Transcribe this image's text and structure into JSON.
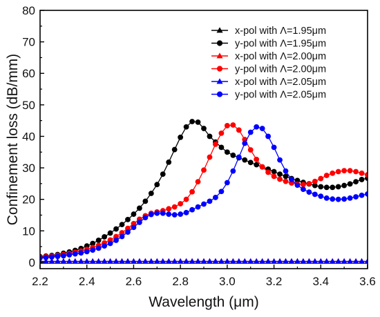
{
  "chart_data": {
    "type": "line",
    "xlabel": "Wavelength (μm)",
    "ylabel": "Confinement loss (dB/mm)",
    "xlim": [
      2.2,
      3.6
    ],
    "ylim": [
      -2,
      80
    ],
    "xticks": [
      "2.2",
      "2.4",
      "2.6",
      "2.8",
      "3.0",
      "3.2",
      "3.4",
      "3.6"
    ],
    "yticks": [
      "0",
      "10",
      "20",
      "30",
      "40",
      "50",
      "60",
      "70",
      "80"
    ],
    "grid": false,
    "legend_position": "top-right",
    "x": [
      2.2,
      2.225,
      2.25,
      2.275,
      2.3,
      2.325,
      2.35,
      2.375,
      2.4,
      2.425,
      2.45,
      2.475,
      2.5,
      2.525,
      2.55,
      2.575,
      2.6,
      2.625,
      2.65,
      2.675,
      2.7,
      2.725,
      2.75,
      2.775,
      2.8,
      2.825,
      2.85,
      2.875,
      2.9,
      2.925,
      2.95,
      2.975,
      3.0,
      3.025,
      3.05,
      3.075,
      3.1,
      3.125,
      3.15,
      3.175,
      3.2,
      3.225,
      3.25,
      3.275,
      3.3,
      3.325,
      3.35,
      3.375,
      3.4,
      3.425,
      3.45,
      3.475,
      3.5,
      3.525,
      3.55,
      3.575,
      3.6
    ],
    "series": [
      {
        "name": "x-pol with Λ=1.95μm",
        "marker": "triangle",
        "color": "#000000",
        "values": [
          0.3,
          0.3,
          0.3,
          0.3,
          0.3,
          0.3,
          0.3,
          0.3,
          0.3,
          0.3,
          0.3,
          0.3,
          0.3,
          0.3,
          0.3,
          0.3,
          0.3,
          0.3,
          0.3,
          0.3,
          0.3,
          0.3,
          0.3,
          0.3,
          0.3,
          0.3,
          0.3,
          0.3,
          0.3,
          0.3,
          0.3,
          0.3,
          0.3,
          0.3,
          0.3,
          0.3,
          0.3,
          0.3,
          0.3,
          0.3,
          0.3,
          0.3,
          0.3,
          0.3,
          0.3,
          0.3,
          0.3,
          0.3,
          0.3,
          0.3,
          0.3,
          0.3,
          0.3,
          0.3,
          0.3,
          0.3,
          0.3
        ]
      },
      {
        "name": "y-pol with Λ=1.95μm",
        "marker": "circle",
        "color": "#000000",
        "values": [
          1.8,
          2.0,
          2.2,
          2.5,
          2.9,
          3.3,
          3.8,
          4.4,
          5.2,
          6.0,
          7.0,
          8.1,
          9.3,
          10.6,
          12.0,
          13.6,
          15.3,
          17.2,
          19.4,
          21.9,
          24.7,
          28.0,
          31.8,
          35.8,
          39.7,
          43.0,
          44.7,
          44.5,
          42.5,
          40.0,
          38.2,
          36.5,
          35.0,
          34.0,
          33.2,
          32.5,
          31.7,
          31.0,
          30.3,
          29.6,
          28.8,
          28.0,
          27.3,
          26.6,
          26.0,
          25.4,
          24.9,
          24.4,
          24.0,
          23.8,
          23.8,
          24.0,
          24.4,
          24.9,
          25.6,
          26.3,
          26.7
        ]
      },
      {
        "name": "x-pol with Λ=2.00μm",
        "marker": "triangle",
        "color": "#ff0000",
        "values": [
          0.3,
          0.3,
          0.3,
          0.3,
          0.3,
          0.3,
          0.3,
          0.3,
          0.3,
          0.3,
          0.3,
          0.3,
          0.3,
          0.3,
          0.3,
          0.3,
          0.3,
          0.3,
          0.3,
          0.3,
          0.3,
          0.3,
          0.3,
          0.3,
          0.3,
          0.3,
          0.3,
          0.3,
          0.3,
          0.3,
          0.3,
          0.3,
          0.3,
          0.3,
          0.3,
          0.3,
          0.3,
          0.3,
          0.3,
          0.3,
          0.3,
          0.3,
          0.3,
          0.3,
          0.3,
          0.3,
          0.3,
          0.3,
          0.3,
          0.3,
          0.3,
          0.3,
          0.3,
          0.3,
          0.3,
          0.3,
          0.3
        ]
      },
      {
        "name": "y-pol with Λ=2.00μm",
        "marker": "circle",
        "color": "#ff0000",
        "values": [
          1.6,
          1.8,
          2.0,
          2.2,
          2.5,
          2.8,
          3.2,
          3.6,
          4.1,
          4.7,
          5.4,
          6.2,
          7.1,
          8.2,
          9.4,
          10.8,
          12.3,
          13.7,
          14.8,
          15.6,
          16.0,
          16.4,
          17.0,
          17.6,
          18.6,
          20.0,
          22.4,
          25.6,
          29.3,
          33.4,
          37.5,
          41.0,
          43.4,
          43.6,
          42.0,
          39.0,
          35.7,
          32.7,
          30.3,
          28.6,
          27.3,
          26.4,
          25.7,
          25.2,
          24.8,
          24.7,
          25.0,
          25.7,
          26.6,
          27.6,
          28.3,
          28.8,
          29.1,
          29.1,
          28.8,
          28.3,
          27.8
        ]
      },
      {
        "name": "x-pol with Λ=2.05μm",
        "marker": "triangle",
        "color": "#0000ff",
        "values": [
          0.3,
          0.3,
          0.3,
          0.3,
          0.3,
          0.3,
          0.3,
          0.3,
          0.3,
          0.3,
          0.3,
          0.3,
          0.3,
          0.3,
          0.3,
          0.3,
          0.3,
          0.3,
          0.3,
          0.3,
          0.3,
          0.3,
          0.3,
          0.3,
          0.3,
          0.3,
          0.3,
          0.3,
          0.3,
          0.3,
          0.3,
          0.3,
          0.3,
          0.3,
          0.3,
          0.3,
          0.3,
          0.3,
          0.3,
          0.3,
          0.3,
          0.3,
          0.3,
          0.3,
          0.3,
          0.3,
          0.3,
          0.3,
          0.3,
          0.3,
          0.3,
          0.3,
          0.3,
          0.3,
          0.3,
          0.3,
          0.3
        ]
      },
      {
        "name": "y-pol with Λ=2.05μm",
        "marker": "circle",
        "color": "#0000ff",
        "values": [
          1.4,
          1.5,
          1.7,
          1.9,
          2.1,
          2.4,
          2.7,
          3.0,
          3.4,
          3.9,
          4.5,
          5.2,
          6.0,
          7.0,
          8.2,
          9.6,
          11.1,
          12.7,
          14.2,
          15.2,
          15.6,
          15.6,
          15.3,
          15.1,
          15.3,
          15.8,
          16.7,
          17.6,
          18.5,
          19.4,
          20.6,
          22.5,
          25.3,
          29.0,
          33.4,
          37.8,
          41.3,
          43.0,
          42.5,
          40.0,
          36.5,
          32.5,
          29.0,
          26.3,
          24.5,
          23.2,
          22.3,
          21.6,
          21.0,
          20.4,
          20.1,
          20.0,
          20.1,
          20.4,
          20.8,
          21.3,
          21.7
        ]
      }
    ]
  }
}
